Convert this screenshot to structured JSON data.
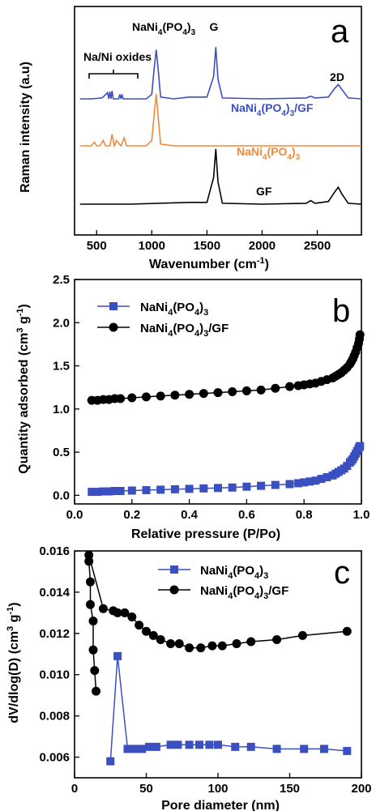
{
  "chart_data": [
    {
      "type": "line",
      "panel_label": "a",
      "xlabel": "Wavenumber (cm",
      "xlabel_sup": "-1",
      "xlabel_close": ")",
      "ylabel": "Raman intensity (a.u)",
      "xlim": [
        300,
        2900
      ],
      "xticks": [
        "500",
        "1000",
        "1500",
        "2000",
        "2500"
      ],
      "yticks": [],
      "series": [
        {
          "name": "NaNi4(PO4)3/GF",
          "color": "#3a4fc0",
          "x": [
            350,
            450,
            550,
            600,
            610,
            620,
            630,
            640,
            650,
            700,
            710,
            720,
            730,
            740,
            800,
            950,
            1000,
            1020,
            1040,
            1060,
            1080,
            1200,
            1340,
            1500,
            1560,
            1580,
            1600,
            1640,
            2000,
            2400,
            2440,
            2480,
            2600,
            2660,
            2690,
            2720,
            2780,
            2900
          ],
          "y": [
            0.0,
            0.0,
            0.01,
            0.07,
            0.0,
            0.08,
            0.0,
            0.09,
            0.0,
            0.0,
            0.05,
            0.0,
            0.05,
            0.0,
            0.0,
            0.0,
            0.05,
            0.32,
            0.55,
            0.3,
            0.02,
            0.0,
            0.02,
            0.02,
            0.25,
            0.58,
            0.22,
            0.01,
            0.0,
            0.01,
            0.03,
            0.01,
            0.02,
            0.12,
            0.16,
            0.11,
            0.01,
            0.0
          ]
        },
        {
          "name": "NaNi4(PO4)3",
          "color": "#f0893a",
          "x": [
            350,
            450,
            480,
            500,
            530,
            560,
            580,
            620,
            640,
            660,
            680,
            720,
            750,
            770,
            800,
            950,
            1000,
            1020,
            1040,
            1060,
            1080,
            1200,
            1500,
            2000,
            2500,
            2900
          ],
          "y": [
            0.0,
            0.0,
            0.04,
            0.0,
            0.0,
            0.06,
            0.0,
            0.0,
            0.13,
            0.0,
            0.06,
            0.0,
            0.09,
            0.0,
            0.0,
            0.0,
            0.06,
            0.33,
            0.58,
            0.3,
            0.02,
            0.0,
            0.0,
            0.0,
            0.0,
            0.0
          ]
        },
        {
          "name": "GF",
          "color": "#000000",
          "x": [
            350,
            800,
            1340,
            1500,
            1560,
            1580,
            1600,
            1640,
            2000,
            2400,
            2440,
            2480,
            2600,
            2660,
            2690,
            2720,
            2780,
            2900
          ],
          "y": [
            0.0,
            0.0,
            0.02,
            0.02,
            0.3,
            0.62,
            0.25,
            0.01,
            0.0,
            0.01,
            0.04,
            0.01,
            0.03,
            0.14,
            0.19,
            0.12,
            0.01,
            0.0
          ]
        }
      ],
      "annotations": {
        "oxides": "Na/Ni oxides",
        "nnp_peak": "NaNi",
        "g_band": "G",
        "d2_band": "2D",
        "gf": "GF"
      }
    },
    {
      "type": "scatter",
      "panel_label": "b",
      "xlabel": "Relative pressure (P/Po)",
      "ylabel": "Quantity adsorbed (cm",
      "ylabel_sup": "3",
      "ylabel_mid": " g",
      "ylabel_sup2": "-1",
      "ylabel_close": ")",
      "xlim": [
        0.0,
        1.0
      ],
      "ylim": [
        -0.1,
        2.5
      ],
      "xticks": [
        "0.0",
        "0.2",
        "0.4",
        "0.6",
        "0.8",
        "1.0"
      ],
      "yticks": [
        "0.0",
        "0.5",
        "1.0",
        "1.5",
        "2.0",
        "2.5"
      ],
      "legend_position": "top-left",
      "series": [
        {
          "name": "NaNi4(PO4)3",
          "color": "#3a4fc0",
          "marker": "square",
          "x": [
            0.06,
            0.08,
            0.1,
            0.12,
            0.14,
            0.16,
            0.2,
            0.25,
            0.3,
            0.35,
            0.4,
            0.45,
            0.5,
            0.55,
            0.6,
            0.65,
            0.7,
            0.75,
            0.78,
            0.8,
            0.82,
            0.84,
            0.86,
            0.88,
            0.9,
            0.91,
            0.92,
            0.93,
            0.94,
            0.95,
            0.96,
            0.965,
            0.97,
            0.975,
            0.98,
            0.985,
            0.99,
            0.993,
            0.995
          ],
          "y": [
            0.04,
            0.04,
            0.045,
            0.045,
            0.05,
            0.05,
            0.055,
            0.06,
            0.065,
            0.07,
            0.075,
            0.08,
            0.085,
            0.09,
            0.1,
            0.11,
            0.12,
            0.13,
            0.14,
            0.15,
            0.16,
            0.17,
            0.19,
            0.21,
            0.23,
            0.25,
            0.27,
            0.29,
            0.31,
            0.34,
            0.38,
            0.4,
            0.42,
            0.45,
            0.48,
            0.51,
            0.54,
            0.56,
            0.57
          ]
        },
        {
          "name": "NaNi4(PO4)3/GF",
          "color": "#000000",
          "marker": "circle",
          "x": [
            0.06,
            0.08,
            0.1,
            0.12,
            0.14,
            0.16,
            0.2,
            0.25,
            0.3,
            0.35,
            0.4,
            0.45,
            0.5,
            0.55,
            0.6,
            0.65,
            0.7,
            0.75,
            0.78,
            0.8,
            0.82,
            0.84,
            0.86,
            0.88,
            0.9,
            0.91,
            0.92,
            0.93,
            0.94,
            0.95,
            0.96,
            0.965,
            0.97,
            0.975,
            0.98,
            0.985,
            0.99,
            0.993,
            0.995
          ],
          "y": [
            1.1,
            1.1,
            1.11,
            1.11,
            1.12,
            1.12,
            1.13,
            1.14,
            1.15,
            1.16,
            1.17,
            1.18,
            1.19,
            1.2,
            1.21,
            1.22,
            1.24,
            1.26,
            1.27,
            1.28,
            1.29,
            1.3,
            1.32,
            1.34,
            1.36,
            1.38,
            1.4,
            1.42,
            1.45,
            1.48,
            1.52,
            1.55,
            1.58,
            1.62,
            1.66,
            1.71,
            1.76,
            1.81,
            1.86
          ]
        }
      ]
    },
    {
      "type": "line",
      "panel_label": "c",
      "xlabel": "Pore diameter (nm)",
      "ylabel": "dV/dlog(D) (cm",
      "ylabel_sup": "3",
      "ylabel_mid": " g",
      "ylabel_sup2": "-1",
      "ylabel_close": ")",
      "xlim": [
        0,
        200
      ],
      "ylim": [
        0.005,
        0.016
      ],
      "xticks": [
        "0",
        "50",
        "100",
        "150",
        "200"
      ],
      "yticks": [
        "0.006",
        "0.008",
        "0.010",
        "0.012",
        "0.014",
        "0.016"
      ],
      "legend_position": "top-right",
      "series": [
        {
          "name": "NaNi4(PO4)3",
          "color": "#3a4fc0",
          "marker": "square",
          "x": [
            25,
            30,
            37,
            42,
            47,
            52,
            57,
            67,
            72,
            80,
            87,
            94,
            100,
            112,
            123,
            141,
            160,
            174,
            190
          ],
          "y": [
            0.0058,
            0.0109,
            0.0064,
            0.0064,
            0.0064,
            0.0065,
            0.0065,
            0.0066,
            0.0066,
            0.0066,
            0.0066,
            0.0066,
            0.0066,
            0.0065,
            0.0065,
            0.0064,
            0.0064,
            0.0064,
            0.0063
          ]
        },
        {
          "name": "NaNi4(PO4)3/GF",
          "color": "#000000",
          "marker": "circle",
          "x": [
            15,
            14,
            13,
            13,
            11,
            11,
            10,
            10,
            20,
            27,
            30,
            35,
            40,
            45,
            50,
            55,
            60,
            67,
            73,
            80,
            88,
            96,
            103,
            113,
            123,
            141,
            159,
            190
          ],
          "y": [
            0.0092,
            0.0102,
            0.0112,
            0.0126,
            0.0134,
            0.0145,
            0.0155,
            0.0158,
            0.0132,
            0.0131,
            0.013,
            0.013,
            0.0128,
            0.0124,
            0.0121,
            0.0119,
            0.0117,
            0.0115,
            0.0115,
            0.0113,
            0.0113,
            0.0114,
            0.0114,
            0.0115,
            0.0116,
            0.0117,
            0.0119,
            0.0121
          ]
        }
      ]
    }
  ]
}
